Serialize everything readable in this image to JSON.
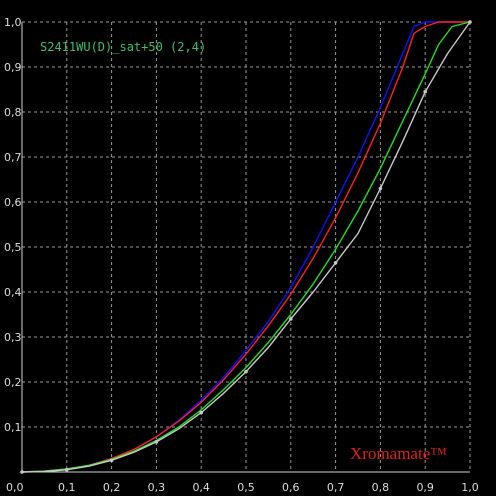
{
  "chart_data": {
    "type": "line",
    "title": "S2411WU(D)_sat+50 (2,4)",
    "watermark": "Xromamate™",
    "xlim": [
      0,
      1
    ],
    "ylim": [
      0,
      1
    ],
    "grid": true,
    "grid_style": "dashed",
    "background": "#000000",
    "x_ticks": [
      "0,0",
      "0,1",
      "0,2",
      "0,3",
      "0,4",
      "0,5",
      "0,6",
      "0,7",
      "0,8",
      "0,9",
      "1,0"
    ],
    "y_ticks": [
      "0,0",
      "0,1",
      "0,2",
      "0,3",
      "0,4",
      "0,5",
      "0,6",
      "0,7",
      "0,8",
      "0,9",
      "1,0"
    ],
    "series": [
      {
        "color": "#1010ff",
        "points": [
          [
            0,
            0
          ],
          [
            0.05,
            0.002
          ],
          [
            0.1,
            0.007
          ],
          [
            0.15,
            0.015
          ],
          [
            0.2,
            0.03
          ],
          [
            0.25,
            0.05
          ],
          [
            0.3,
            0.078
          ],
          [
            0.35,
            0.115
          ],
          [
            0.4,
            0.16
          ],
          [
            0.45,
            0.21
          ],
          [
            0.5,
            0.27
          ],
          [
            0.55,
            0.335
          ],
          [
            0.6,
            0.41
          ],
          [
            0.65,
            0.5
          ],
          [
            0.7,
            0.6
          ],
          [
            0.75,
            0.7
          ],
          [
            0.8,
            0.81
          ],
          [
            0.85,
            0.93
          ],
          [
            0.875,
            0.99
          ],
          [
            0.9,
            1.0
          ],
          [
            1.0,
            1.0
          ]
        ]
      },
      {
        "color": "#ff2020",
        "points": [
          [
            0,
            0
          ],
          [
            0.05,
            0.002
          ],
          [
            0.1,
            0.007
          ],
          [
            0.15,
            0.015
          ],
          [
            0.2,
            0.03
          ],
          [
            0.25,
            0.05
          ],
          [
            0.3,
            0.078
          ],
          [
            0.35,
            0.113
          ],
          [
            0.4,
            0.155
          ],
          [
            0.45,
            0.205
          ],
          [
            0.5,
            0.262
          ],
          [
            0.55,
            0.325
          ],
          [
            0.6,
            0.395
          ],
          [
            0.65,
            0.475
          ],
          [
            0.7,
            0.565
          ],
          [
            0.75,
            0.665
          ],
          [
            0.8,
            0.775
          ],
          [
            0.85,
            0.9
          ],
          [
            0.875,
            0.975
          ],
          [
            0.9,
            0.99
          ],
          [
            0.93,
            1.0
          ],
          [
            1.0,
            1.0
          ]
        ]
      },
      {
        "color": "#20e020",
        "points": [
          [
            0,
            0
          ],
          [
            0.05,
            0.002
          ],
          [
            0.1,
            0.007
          ],
          [
            0.15,
            0.015
          ],
          [
            0.2,
            0.028
          ],
          [
            0.25,
            0.046
          ],
          [
            0.3,
            0.07
          ],
          [
            0.35,
            0.1
          ],
          [
            0.4,
            0.138
          ],
          [
            0.45,
            0.183
          ],
          [
            0.5,
            0.232
          ],
          [
            0.55,
            0.288
          ],
          [
            0.6,
            0.35
          ],
          [
            0.65,
            0.418
          ],
          [
            0.7,
            0.495
          ],
          [
            0.75,
            0.58
          ],
          [
            0.8,
            0.675
          ],
          [
            0.85,
            0.78
          ],
          [
            0.9,
            0.885
          ],
          [
            0.93,
            0.95
          ],
          [
            0.96,
            0.99
          ],
          [
            1.0,
            1.0
          ]
        ]
      },
      {
        "color": "#c8c8c8",
        "markers": true,
        "points": [
          [
            0,
            0
          ],
          [
            0.05,
            0.001
          ],
          [
            0.1,
            0.005
          ],
          [
            0.15,
            0.013
          ],
          [
            0.2,
            0.026
          ],
          [
            0.25,
            0.044
          ],
          [
            0.3,
            0.067
          ],
          [
            0.35,
            0.096
          ],
          [
            0.4,
            0.132
          ],
          [
            0.45,
            0.175
          ],
          [
            0.5,
            0.223
          ],
          [
            0.55,
            0.277
          ],
          [
            0.6,
            0.34
          ],
          [
            0.65,
            0.4
          ],
          [
            0.7,
            0.465
          ],
          [
            0.75,
            0.53
          ],
          [
            0.8,
            0.63
          ],
          [
            0.85,
            0.735
          ],
          [
            0.9,
            0.845
          ],
          [
            0.95,
            0.93
          ],
          [
            1.0,
            1.0
          ]
        ]
      }
    ]
  }
}
